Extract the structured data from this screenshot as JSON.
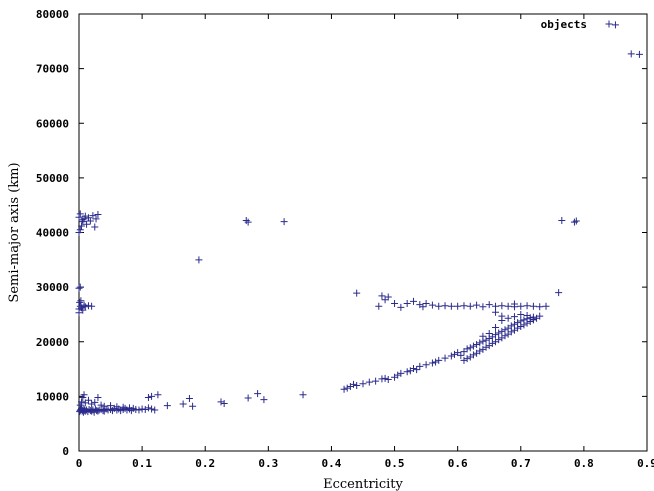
{
  "chart_data": {
    "type": "scatter",
    "title": "",
    "xlabel": "Eccentricity",
    "ylabel": "Semi-major axis (km)",
    "xlim": [
      0,
      0.9
    ],
    "ylim": [
      0,
      80000
    ],
    "xticks": [
      0,
      0.1,
      0.2,
      0.3,
      0.4,
      0.5,
      0.6,
      0.7,
      0.8,
      0.9
    ],
    "yticks": [
      0,
      10000,
      20000,
      30000,
      40000,
      50000,
      60000,
      70000,
      80000
    ],
    "xtick_labels": [
      "0",
      "0.1",
      "0.2",
      "0.3",
      "0.4",
      "0.5",
      "0.6",
      "0.7",
      "0.8",
      "0.9"
    ],
    "ytick_labels": [
      "0",
      "10000",
      "20000",
      "30000",
      "40000",
      "50000",
      "60000",
      "70000",
      "80000"
    ],
    "grid": false,
    "legend_position": "top-right",
    "marker_color": "#2b2b8c",
    "series": [
      {
        "name": "objects",
        "points": [
          [
            0.001,
            7200
          ],
          [
            0.002,
            7400
          ],
          [
            0.003,
            7600
          ],
          [
            0.004,
            7800
          ],
          [
            0.005,
            7300
          ],
          [
            0.006,
            7500
          ],
          [
            0.007,
            7100
          ],
          [
            0.008,
            7700
          ],
          [
            0.009,
            7400
          ],
          [
            0.01,
            7300
          ],
          [
            0.012,
            7500
          ],
          [
            0.014,
            7200
          ],
          [
            0.016,
            7600
          ],
          [
            0.018,
            7400
          ],
          [
            0.02,
            7300
          ],
          [
            0.022,
            7500
          ],
          [
            0.024,
            7100
          ],
          [
            0.026,
            7700
          ],
          [
            0.028,
            7400
          ],
          [
            0.03,
            7300
          ],
          [
            0.032,
            7500
          ],
          [
            0.035,
            7600
          ],
          [
            0.038,
            7400
          ],
          [
            0.04,
            7300
          ],
          [
            0.043,
            7700
          ],
          [
            0.046,
            7500
          ],
          [
            0.05,
            7600
          ],
          [
            0.053,
            7400
          ],
          [
            0.056,
            7800
          ],
          [
            0.06,
            7500
          ],
          [
            0.063,
            7700
          ],
          [
            0.066,
            7400
          ],
          [
            0.07,
            7600
          ],
          [
            0.073,
            7800
          ],
          [
            0.076,
            7500
          ],
          [
            0.08,
            7700
          ],
          [
            0.083,
            7400
          ],
          [
            0.086,
            7800
          ],
          [
            0.09,
            7600
          ],
          [
            0.095,
            7500
          ],
          [
            0.1,
            7700
          ],
          [
            0.105,
            7600
          ],
          [
            0.11,
            7900
          ],
          [
            0.115,
            7700
          ],
          [
            0.12,
            7500
          ],
          [
            0.002,
            8400
          ],
          [
            0.004,
            9000
          ],
          [
            0.006,
            9800
          ],
          [
            0.008,
            10300
          ],
          [
            0.01,
            8800
          ],
          [
            0.015,
            9300
          ],
          [
            0.02,
            8600
          ],
          [
            0.03,
            9800
          ],
          [
            0.025,
            8900
          ],
          [
            0.035,
            8400
          ],
          [
            0.04,
            8200
          ],
          [
            0.05,
            8300
          ],
          [
            0.06,
            8100
          ],
          [
            0.07,
            8000
          ],
          [
            0.08,
            7900
          ],
          [
            0.11,
            9800
          ],
          [
            0.115,
            10000
          ],
          [
            0.125,
            10300
          ],
          [
            0.14,
            8300
          ],
          [
            0.165,
            8600
          ],
          [
            0.175,
            9600
          ],
          [
            0.18,
            8200
          ],
          [
            0.225,
            9000
          ],
          [
            0.23,
            8700
          ],
          [
            0.268,
            9700
          ],
          [
            0.283,
            10500
          ],
          [
            0.293,
            9400
          ],
          [
            0.355,
            10300
          ],
          [
            0.42,
            11300
          ],
          [
            0.425,
            11500
          ],
          [
            0.43,
            11800
          ],
          [
            0.435,
            12200
          ],
          [
            0.44,
            12000
          ],
          [
            0.45,
            12300
          ],
          [
            0.46,
            12600
          ],
          [
            0.47,
            12800
          ],
          [
            0.48,
            13200
          ],
          [
            0.485,
            13300
          ],
          [
            0.49,
            13100
          ],
          [
            0.5,
            13500
          ],
          [
            0.505,
            13900
          ],
          [
            0.51,
            14200
          ],
          [
            0.52,
            14500
          ],
          [
            0.525,
            14700
          ],
          [
            0.53,
            15100
          ],
          [
            0.535,
            14900
          ],
          [
            0.54,
            15500
          ],
          [
            0.55,
            15800
          ],
          [
            0.56,
            16100
          ],
          [
            0.565,
            16300
          ],
          [
            0.57,
            16600
          ],
          [
            0.58,
            17000
          ],
          [
            0.59,
            17400
          ],
          [
            0.595,
            17700
          ],
          [
            0.6,
            18000
          ],
          [
            0.605,
            17500
          ],
          [
            0.61,
            18200
          ],
          [
            0.615,
            18700
          ],
          [
            0.62,
            18900
          ],
          [
            0.625,
            19200
          ],
          [
            0.63,
            19500
          ],
          [
            0.635,
            19800
          ],
          [
            0.64,
            20100
          ],
          [
            0.645,
            20300
          ],
          [
            0.65,
            20600
          ],
          [
            0.655,
            20900
          ],
          [
            0.66,
            21300
          ],
          [
            0.665,
            21600
          ],
          [
            0.67,
            21900
          ],
          [
            0.675,
            22200
          ],
          [
            0.68,
            22500
          ],
          [
            0.685,
            22900
          ],
          [
            0.69,
            23200
          ],
          [
            0.695,
            23500
          ],
          [
            0.7,
            23800
          ],
          [
            0.705,
            24000
          ],
          [
            0.71,
            24200
          ],
          [
            0.715,
            24400
          ],
          [
            0.72,
            24500
          ],
          [
            0.725,
            24300
          ],
          [
            0.72,
            24000
          ],
          [
            0.715,
            23700
          ],
          [
            0.71,
            23400
          ],
          [
            0.705,
            23100
          ],
          [
            0.7,
            22800
          ],
          [
            0.695,
            22500
          ],
          [
            0.69,
            22100
          ],
          [
            0.685,
            21800
          ],
          [
            0.68,
            21400
          ],
          [
            0.675,
            21100
          ],
          [
            0.67,
            20700
          ],
          [
            0.665,
            20400
          ],
          [
            0.66,
            20000
          ],
          [
            0.655,
            19700
          ],
          [
            0.65,
            19300
          ],
          [
            0.645,
            19000
          ],
          [
            0.64,
            18600
          ],
          [
            0.635,
            18300
          ],
          [
            0.63,
            17900
          ],
          [
            0.625,
            17600
          ],
          [
            0.62,
            17200
          ],
          [
            0.615,
            16900
          ],
          [
            0.61,
            16600
          ],
          [
            0.69,
            24600
          ],
          [
            0.7,
            25000
          ],
          [
            0.71,
            24800
          ],
          [
            0.72,
            24100
          ],
          [
            0.73,
            24700
          ],
          [
            0.68,
            24300
          ],
          [
            0.67,
            23900
          ],
          [
            0.66,
            22600
          ],
          [
            0.65,
            21500
          ],
          [
            0.64,
            21000
          ],
          [
            0.0,
            26000
          ],
          [
            0.002,
            26500
          ],
          [
            0.004,
            26200
          ],
          [
            0.006,
            25800
          ],
          [
            0.008,
            26700
          ],
          [
            0.01,
            26400
          ],
          [
            0.015,
            26600
          ],
          [
            0.02,
            26500
          ],
          [
            0.0,
            25300
          ],
          [
            0.001,
            27200
          ],
          [
            0.003,
            27500
          ],
          [
            0.0,
            29800
          ],
          [
            0.002,
            30000
          ],
          [
            0.0,
            40000
          ],
          [
            0.002,
            40500
          ],
          [
            0.004,
            41200
          ],
          [
            0.006,
            42000
          ],
          [
            0.008,
            42500
          ],
          [
            0.01,
            43000
          ],
          [
            0.0,
            42800
          ],
          [
            0.002,
            43400
          ],
          [
            0.005,
            42300
          ],
          [
            0.012,
            41500
          ],
          [
            0.015,
            42700
          ],
          [
            0.018,
            42100
          ],
          [
            0.022,
            43100
          ],
          [
            0.025,
            41000
          ],
          [
            0.027,
            42500
          ],
          [
            0.03,
            43300
          ],
          [
            0.265,
            42200
          ],
          [
            0.268,
            41900
          ],
          [
            0.325,
            42000
          ],
          [
            0.19,
            35000
          ],
          [
            0.765,
            42200
          ],
          [
            0.785,
            41900
          ],
          [
            0.788,
            42100
          ],
          [
            0.44,
            28900
          ],
          [
            0.475,
            26500
          ],
          [
            0.48,
            28400
          ],
          [
            0.485,
            27700
          ],
          [
            0.49,
            28200
          ],
          [
            0.5,
            27000
          ],
          [
            0.51,
            26300
          ],
          [
            0.52,
            27000
          ],
          [
            0.53,
            27400
          ],
          [
            0.54,
            26800
          ],
          [
            0.545,
            26400
          ],
          [
            0.55,
            27000
          ],
          [
            0.56,
            26700
          ],
          [
            0.57,
            26500
          ],
          [
            0.58,
            26600
          ],
          [
            0.59,
            26500
          ],
          [
            0.6,
            26500
          ],
          [
            0.61,
            26600
          ],
          [
            0.62,
            26500
          ],
          [
            0.63,
            26700
          ],
          [
            0.64,
            26400
          ],
          [
            0.65,
            26800
          ],
          [
            0.66,
            26500
          ],
          [
            0.67,
            26600
          ],
          [
            0.68,
            26500
          ],
          [
            0.69,
            26400
          ],
          [
            0.7,
            26500
          ],
          [
            0.71,
            26600
          ],
          [
            0.72,
            26500
          ],
          [
            0.73,
            26400
          ],
          [
            0.74,
            26500
          ],
          [
            0.69,
            26900
          ],
          [
            0.66,
            25400
          ],
          [
            0.67,
            24700
          ],
          [
            0.76,
            29000
          ],
          [
            0.85,
            78000
          ],
          [
            0.875,
            72700
          ],
          [
            0.888,
            72600
          ]
        ]
      }
    ]
  }
}
